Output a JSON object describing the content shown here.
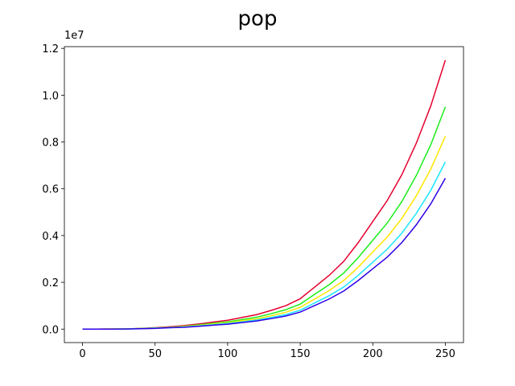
{
  "chart_data": {
    "type": "line",
    "title": "pop",
    "y_offset_label": "1e7",
    "x": [
      0,
      10,
      20,
      30,
      40,
      50,
      60,
      70,
      80,
      90,
      100,
      110,
      120,
      130,
      140,
      150,
      160,
      170,
      180,
      190,
      200,
      210,
      220,
      230,
      240,
      250
    ],
    "series": [
      {
        "color": "#e6002e",
        "values": [
          0,
          0.0002,
          0.0005,
          0.001,
          0.003,
          0.006,
          0.01,
          0.015,
          0.022,
          0.03,
          0.038,
          0.05,
          0.062,
          0.08,
          0.1,
          0.13,
          0.18,
          0.23,
          0.29,
          0.37,
          0.46,
          0.55,
          0.66,
          0.795,
          0.955,
          1.15
        ]
      },
      {
        "color": "#1aee1a",
        "values": [
          0,
          0.0002,
          0.0004,
          0.001,
          0.0025,
          0.005,
          0.008,
          0.012,
          0.018,
          0.025,
          0.031,
          0.041,
          0.051,
          0.066,
          0.083,
          0.107,
          0.149,
          0.19,
          0.24,
          0.306,
          0.38,
          0.454,
          0.545,
          0.657,
          0.789,
          0.95
        ]
      },
      {
        "color": "#ffe600",
        "values": [
          0,
          0.0001,
          0.0004,
          0.001,
          0.002,
          0.004,
          0.007,
          0.011,
          0.016,
          0.022,
          0.027,
          0.036,
          0.044,
          0.057,
          0.072,
          0.093,
          0.129,
          0.165,
          0.208,
          0.265,
          0.33,
          0.394,
          0.473,
          0.57,
          0.685,
          0.825
        ]
      },
      {
        "color": "#1ae6ff",
        "values": [
          0,
          0.0001,
          0.0003,
          0.0006,
          0.002,
          0.004,
          0.006,
          0.009,
          0.014,
          0.019,
          0.024,
          0.031,
          0.039,
          0.05,
          0.062,
          0.081,
          0.112,
          0.143,
          0.18,
          0.23,
          0.286,
          0.342,
          0.41,
          0.495,
          0.594,
          0.715
        ]
      },
      {
        "color": "#2e00e6",
        "values": [
          0,
          0.0001,
          0.0003,
          0.0006,
          0.002,
          0.003,
          0.006,
          0.008,
          0.012,
          0.017,
          0.021,
          0.028,
          0.035,
          0.045,
          0.056,
          0.073,
          0.101,
          0.129,
          0.163,
          0.208,
          0.258,
          0.308,
          0.37,
          0.446,
          0.536,
          0.645
        ]
      }
    ],
    "xlim": [
      -12.5,
      262.5
    ],
    "xticks": [
      0,
      50,
      100,
      150,
      200,
      250
    ],
    "ylim": [
      -0.0575,
      1.2075
    ],
    "yticks": [
      {
        "value": 0,
        "label": "0.0"
      },
      0.2,
      0.4,
      0.6,
      0.8,
      {
        "value": 1,
        "label": "1.0"
      },
      1.2
    ]
  }
}
